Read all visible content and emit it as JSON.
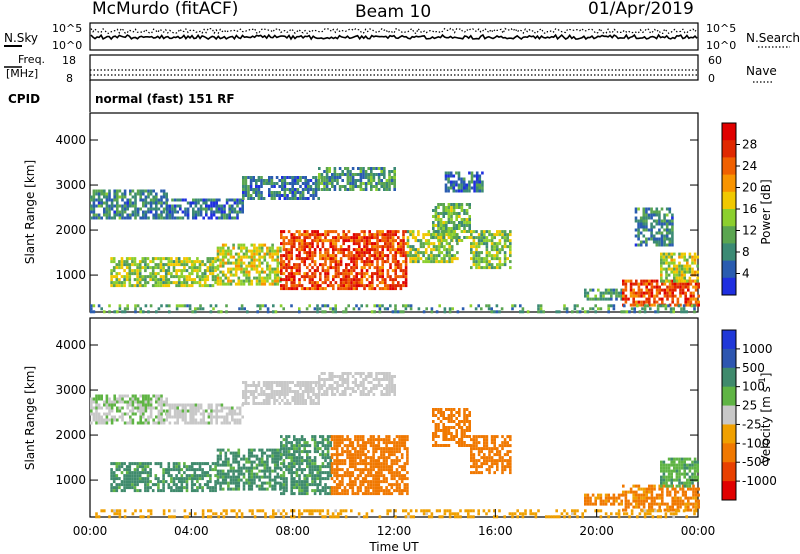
{
  "header": {
    "station": "McMurdo (fitACF)",
    "beam": "Beam 10",
    "date": "01/Apr/2019"
  },
  "noise_panel": {
    "left_label": "N.Sky",
    "right_label": "N.Search",
    "left_ticks": [
      "10^5",
      "10^0"
    ],
    "right_ticks": [
      "10^5",
      "10^0"
    ]
  },
  "freq_panel": {
    "left_label_1": "Freq.",
    "left_label_2": "[MHz]",
    "right_label": "Nave",
    "left_ticks": [
      "18",
      "8"
    ],
    "right_ticks": [
      "60",
      "0"
    ]
  },
  "cpid": {
    "label": "CPID",
    "text": "normal (fast) 151 RF"
  },
  "colors": {
    "power_scale": [
      "#1f2fe0",
      "#2a5cb0",
      "#3b8a74",
      "#5aa550",
      "#8ccf2e",
      "#f0c800",
      "#f89400",
      "#f06000",
      "#e02800",
      "#e00000"
    ],
    "velocity_scale": [
      "#2038d8",
      "#2e56b0",
      "#3f8a6c",
      "#5fb444",
      "#c8c8c8",
      "#f0a000",
      "#f07800",
      "#e84000",
      "#e00000"
    ]
  },
  "chart_data": [
    {
      "type": "heatmap",
      "name": "power",
      "ylabel": "Slant Range [km]",
      "ylim": [
        180,
        4600
      ],
      "yticks": [
        1000,
        2000,
        3000,
        4000
      ],
      "colorbar_label": "Power [dB]",
      "colorbar_ticks": [
        "4",
        "8",
        "12",
        "16",
        "20",
        "24",
        "28"
      ],
      "cbar_range": [
        0,
        32
      ],
      "xlim": [
        0,
        24
      ],
      "regions": [
        {
          "x": [
            0.0,
            3.0
          ],
          "y": [
            2300,
            2900
          ],
          "v": 8
        },
        {
          "x": [
            3.0,
            6.0
          ],
          "y": [
            2300,
            2700
          ],
          "v": 6
        },
        {
          "x": [
            6.0,
            9.0
          ],
          "y": [
            2700,
            3200
          ],
          "v": 7
        },
        {
          "x": [
            9.0,
            12.0
          ],
          "y": [
            2900,
            3400
          ],
          "v": 9
        },
        {
          "x": [
            0.8,
            5.0
          ],
          "y": [
            800,
            1400
          ],
          "v": 14
        },
        {
          "x": [
            5.0,
            7.5
          ],
          "y": [
            800,
            1700
          ],
          "v": 16
        },
        {
          "x": [
            7.5,
            12.5
          ],
          "y": [
            700,
            2000
          ],
          "v": 26
        },
        {
          "x": [
            12.5,
            14.5
          ],
          "y": [
            1300,
            2000
          ],
          "v": 14
        },
        {
          "x": [
            13.5,
            15.0
          ],
          "y": [
            1800,
            2600
          ],
          "v": 12
        },
        {
          "x": [
            15.0,
            16.6
          ],
          "y": [
            1200,
            2000
          ],
          "v": 13
        },
        {
          "x": [
            14.0,
            15.5
          ],
          "y": [
            2900,
            3300
          ],
          "v": 6
        },
        {
          "x": [
            19.5,
            21.0
          ],
          "y": [
            500,
            700
          ],
          "v": 10
        },
        {
          "x": [
            21.0,
            24.0
          ],
          "y": [
            350,
            900
          ],
          "v": 26
        },
        {
          "x": [
            22.5,
            24.0
          ],
          "y": [
            900,
            1500
          ],
          "v": 15
        },
        {
          "x": [
            21.5,
            23.0
          ],
          "y": [
            1700,
            2500
          ],
          "v": 8
        },
        {
          "x": [
            0.0,
            24.0
          ],
          "y": [
            200,
            350
          ],
          "v": 9
        }
      ]
    },
    {
      "type": "heatmap",
      "name": "velocity",
      "ylabel": "Slant Range [km]",
      "xlabel": "Time UT",
      "ylim": [
        180,
        4600
      ],
      "yticks": [
        1000,
        2000,
        3000,
        4000
      ],
      "xticks": [
        "00:00",
        "04:00",
        "08:00",
        "12:00",
        "16:00",
        "20:00",
        "00:00"
      ],
      "colorbar_label": "Velocity [m s^-1]",
      "colorbar_ticks": [
        "1000",
        "500",
        "100",
        "25",
        "-25",
        "-100",
        "-500",
        "-1000"
      ],
      "xlim": [
        0,
        24
      ],
      "regions": [
        {
          "x": [
            0.0,
            3.0
          ],
          "y": [
            2300,
            2900
          ],
          "v": 20
        },
        {
          "x": [
            3.0,
            6.0
          ],
          "y": [
            2300,
            2700
          ],
          "v": 10
        },
        {
          "x": [
            6.0,
            9.0
          ],
          "y": [
            2700,
            3200
          ],
          "v": 5
        },
        {
          "x": [
            9.0,
            12.0
          ],
          "y": [
            2900,
            3400
          ],
          "v": 5
        },
        {
          "x": [
            0.8,
            5.0
          ],
          "y": [
            800,
            1400
          ],
          "v": 150
        },
        {
          "x": [
            5.0,
            7.5
          ],
          "y": [
            800,
            1700
          ],
          "v": 150
        },
        {
          "x": [
            7.5,
            9.5
          ],
          "y": [
            700,
            2000
          ],
          "v": 150
        },
        {
          "x": [
            9.5,
            12.5
          ],
          "y": [
            700,
            2000
          ],
          "v": -200
        },
        {
          "x": [
            13.5,
            15.0
          ],
          "y": [
            1800,
            2600
          ],
          "v": -200
        },
        {
          "x": [
            15.0,
            16.6
          ],
          "y": [
            1200,
            2000
          ],
          "v": -200
        },
        {
          "x": [
            19.5,
            21.0
          ],
          "y": [
            500,
            700
          ],
          "v": -150
        },
        {
          "x": [
            21.0,
            24.0
          ],
          "y": [
            350,
            900
          ],
          "v": -150
        },
        {
          "x": [
            22.5,
            24.0
          ],
          "y": [
            900,
            1500
          ],
          "v": 80
        },
        {
          "x": [
            0.0,
            24.0
          ],
          "y": [
            200,
            350
          ],
          "v": -60
        }
      ]
    }
  ]
}
